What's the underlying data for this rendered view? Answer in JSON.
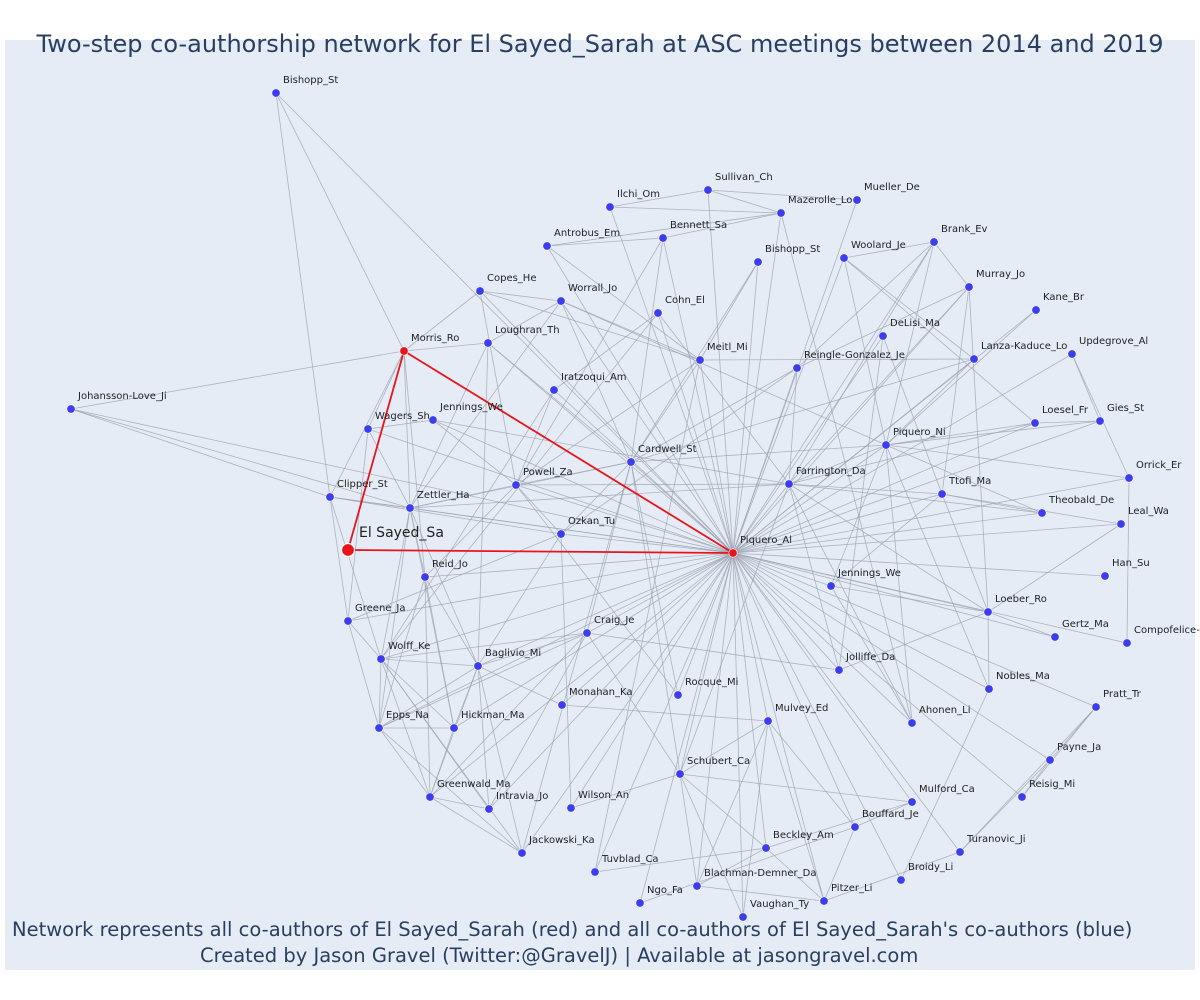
{
  "title": "Two-step co-authorship network for El Sayed_Sarah at ASC meetings between 2014 and 2019",
  "footer_line1": "Network represents all co-authors of El Sayed_Sarah (red) and all co-authors of El Sayed_Sarah's co-authors (blue)",
  "footer_line2": "Created by Jason Gravel (Twitter:@GravelJ) | Available at jasongravel.com",
  "colors": {
    "focus": "#e8141c",
    "coauthor": "#3d3df0",
    "edge": "#9aa0ad",
    "background": "#e5ecf6"
  },
  "nodes": [
    {
      "id": "elsayed",
      "label": "El Sayed_Sa",
      "type": "focus"
    },
    {
      "id": "morris",
      "label": "Morris_Ro",
      "type": "coauthor"
    },
    {
      "id": "piquero_al",
      "label": "Piquero_Al",
      "type": "coauthor"
    },
    {
      "id": "bishopp1",
      "label": "Bishopp_St",
      "type": "second"
    },
    {
      "id": "johansson",
      "label": "Johansson-Love_Ji",
      "type": "second"
    },
    {
      "id": "sullivan",
      "label": "Sullivan_Ch",
      "type": "second"
    },
    {
      "id": "ilchi",
      "label": "Ilchi_Om",
      "type": "second"
    },
    {
      "id": "mueller",
      "label": "Mueller_De",
      "type": "second"
    },
    {
      "id": "mazerolle",
      "label": "Mazerolle_Lo",
      "type": "second"
    },
    {
      "id": "bennett",
      "label": "Bennett_Sa",
      "type": "second"
    },
    {
      "id": "antrobus",
      "label": "Antrobus_Em",
      "type": "second"
    },
    {
      "id": "brank",
      "label": "Brank_Ev",
      "type": "second"
    },
    {
      "id": "woolard",
      "label": "Woolard_Je",
      "type": "second"
    },
    {
      "id": "bishopp2",
      "label": "Bishopp_St",
      "type": "second"
    },
    {
      "id": "murray",
      "label": "Murray_Jo",
      "type": "second"
    },
    {
      "id": "copes",
      "label": "Copes_He",
      "type": "second"
    },
    {
      "id": "worrall",
      "label": "Worrall_Jo",
      "type": "second"
    },
    {
      "id": "cohn",
      "label": "Cohn_El",
      "type": "second"
    },
    {
      "id": "kane",
      "label": "Kane_Br",
      "type": "second"
    },
    {
      "id": "delisi",
      "label": "DeLisi_Ma",
      "type": "second"
    },
    {
      "id": "updegrove",
      "label": "Updegrove_Al",
      "type": "second"
    },
    {
      "id": "loughran",
      "label": "Loughran_Th",
      "type": "second"
    },
    {
      "id": "meitl",
      "label": "Meitl_Mi",
      "type": "second"
    },
    {
      "id": "reingle",
      "label": "Reingle-Gonzalez_Je",
      "type": "second"
    },
    {
      "id": "lanza",
      "label": "Lanza-Kaduce_Lo",
      "type": "second"
    },
    {
      "id": "iratzoqui",
      "label": "Iratzoqui_Am",
      "type": "second"
    },
    {
      "id": "gies",
      "label": "Gies_St",
      "type": "second"
    },
    {
      "id": "loesel",
      "label": "Loesel_Fr",
      "type": "second"
    },
    {
      "id": "wagers",
      "label": "Wagers_Sh",
      "type": "second"
    },
    {
      "id": "jennings_we1",
      "label": "Jennings_We",
      "type": "second"
    },
    {
      "id": "piquero_ni",
      "label": "Piquero_Ni",
      "type": "second"
    },
    {
      "id": "cardwell",
      "label": "Cardwell_St",
      "type": "second"
    },
    {
      "id": "orrick",
      "label": "Orrick_Er",
      "type": "second"
    },
    {
      "id": "farrington",
      "label": "Farrington_Da",
      "type": "second"
    },
    {
      "id": "powell",
      "label": "Powell_Za",
      "type": "second"
    },
    {
      "id": "ttofi",
      "label": "Ttofi_Ma",
      "type": "second"
    },
    {
      "id": "clipper",
      "label": "Clipper_St",
      "type": "second"
    },
    {
      "id": "zettler",
      "label": "Zettler_Ha",
      "type": "second"
    },
    {
      "id": "theobald",
      "label": "Theobald_De",
      "type": "second"
    },
    {
      "id": "leal",
      "label": "Leal_Wa",
      "type": "second"
    },
    {
      "id": "ozkan",
      "label": "Ozkan_Tu",
      "type": "second"
    },
    {
      "id": "reid",
      "label": "Reid_Jo",
      "type": "second"
    },
    {
      "id": "jennings_we2",
      "label": "Jennings_We",
      "type": "second"
    },
    {
      "id": "han",
      "label": "Han_Su",
      "type": "second"
    },
    {
      "id": "loeber",
      "label": "Loeber_Ro",
      "type": "second"
    },
    {
      "id": "greene",
      "label": "Greene_Ja",
      "type": "second"
    },
    {
      "id": "craig",
      "label": "Craig_Je",
      "type": "second"
    },
    {
      "id": "gertz",
      "label": "Gertz_Ma",
      "type": "second"
    },
    {
      "id": "compofelice",
      "label": "Compofelice-",
      "type": "second"
    },
    {
      "id": "wolff",
      "label": "Wolff_Ke",
      "type": "second"
    },
    {
      "id": "baglivio",
      "label": "Baglivio_Mi",
      "type": "second"
    },
    {
      "id": "jolliffe",
      "label": "Jolliffe_Da",
      "type": "second"
    },
    {
      "id": "nobles",
      "label": "Nobles_Ma",
      "type": "second"
    },
    {
      "id": "monahan",
      "label": "Monahan_Ka",
      "type": "second"
    },
    {
      "id": "rocque",
      "label": "Rocque_Mi",
      "type": "second"
    },
    {
      "id": "pratt",
      "label": "Pratt_Tr",
      "type": "second"
    },
    {
      "id": "mulvey",
      "label": "Mulvey_Ed",
      "type": "second"
    },
    {
      "id": "ahonen",
      "label": "Ahonen_Li",
      "type": "second"
    },
    {
      "id": "epps",
      "label": "Epps_Na",
      "type": "second"
    },
    {
      "id": "hickman",
      "label": "Hickman_Ma",
      "type": "second"
    },
    {
      "id": "payne",
      "label": "Payne_Ja",
      "type": "second"
    },
    {
      "id": "schubert",
      "label": "Schubert_Ca",
      "type": "second"
    },
    {
      "id": "greenwald",
      "label": "Greenwald_Ma",
      "type": "second"
    },
    {
      "id": "reisig",
      "label": "Reisig_Mi",
      "type": "second"
    },
    {
      "id": "intravia",
      "label": "Intravia_Jo",
      "type": "second"
    },
    {
      "id": "wilson",
      "label": "Wilson_An",
      "type": "second"
    },
    {
      "id": "mulford",
      "label": "Mulford_Ca",
      "type": "second"
    },
    {
      "id": "bouffard",
      "label": "Bouffard_Je",
      "type": "second"
    },
    {
      "id": "jackowski",
      "label": "Jackowski_Ka",
      "type": "second"
    },
    {
      "id": "beckley",
      "label": "Beckley_Am",
      "type": "second"
    },
    {
      "id": "turanovic",
      "label": "Turanovic_Ji",
      "type": "second"
    },
    {
      "id": "tuvblad",
      "label": "Tuvblad_Ca",
      "type": "second"
    },
    {
      "id": "blachman",
      "label": "Blachman-Demner_Da",
      "type": "second"
    },
    {
      "id": "broidy",
      "label": "Broidy_Li",
      "type": "second"
    },
    {
      "id": "ngo",
      "label": "Ngo_Fa",
      "type": "second"
    },
    {
      "id": "pitzer",
      "label": "Pitzer_Li",
      "type": "second"
    },
    {
      "id": "vaughan",
      "label": "Vaughan_Ty",
      "type": "second"
    }
  ]
}
